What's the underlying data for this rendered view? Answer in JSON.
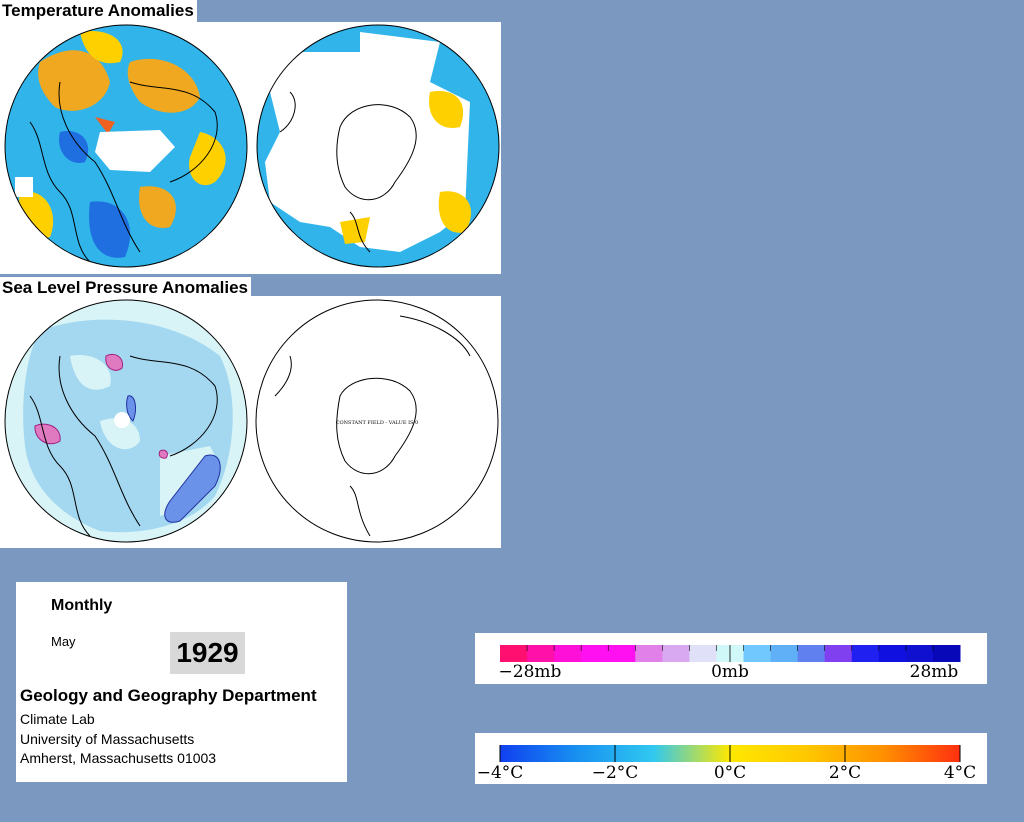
{
  "sections": {
    "temperature_title": "Temperature Anomalies",
    "pressure_title": "Sea Level Pressure Anomalies"
  },
  "maps": {
    "pressure_south_note": "CONSTANT FIELD - VALUE IS 0"
  },
  "info": {
    "frequency": "Monthly",
    "month": "May",
    "year": "1929",
    "department": "Geology and Geography Department",
    "lab": "Climate Lab",
    "university": "University of Massachusetts",
    "address": "Amherst, Massachusetts 01003"
  },
  "pressure_legend": {
    "labels": [
      "−28mb",
      "0mb",
      "28mb"
    ],
    "colors": [
      "#ff1070",
      "#ff10a8",
      "#ff10d8",
      "#ff10f0",
      "#ff10f0",
      "#e080e8",
      "#d8a8f0",
      "#e0e0f8",
      "#d0f8f8",
      "#70c8ff",
      "#60b0f8",
      "#6080f0",
      "#8040f0",
      "#2020f0",
      "#1010e0",
      "#1010d0",
      "#0808b8"
    ]
  },
  "temperature_legend": {
    "labels": [
      "−4°C",
      "−2°C",
      "0°C",
      "2°C",
      "4°C"
    ],
    "colors": [
      "#1040f0",
      "#1890f0",
      "#30c8f0",
      "#ffe800",
      "#ffc800",
      "#ff9000",
      "#ff3010"
    ]
  }
}
